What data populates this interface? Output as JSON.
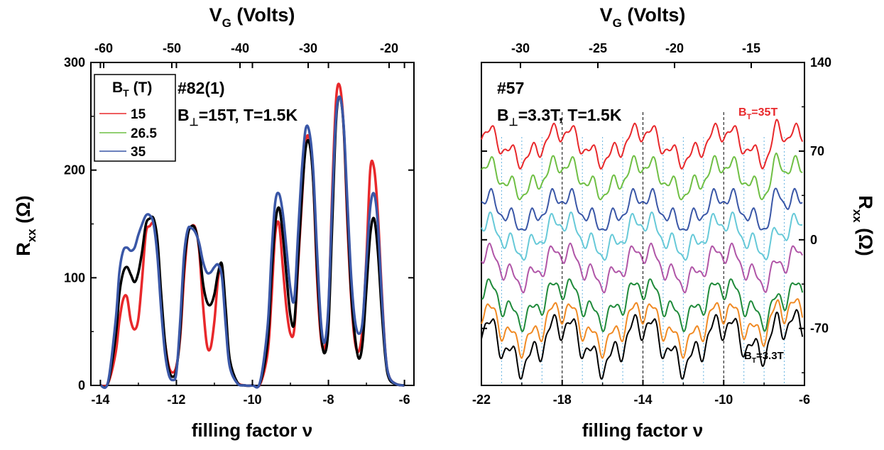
{
  "chart_data": [
    {
      "type": "line",
      "panel": "left",
      "xlabel": "filling factor ν",
      "top_axis_label": "V_G (Volts)",
      "ylabel": "R_xx (Ω)",
      "xlim": [
        -14.25,
        -5.75
      ],
      "ylim": [
        0,
        300
      ],
      "xticks": [
        "-14",
        "-12",
        "-10",
        "-8",
        "-6"
      ],
      "yticks": [
        "0",
        "100",
        "200",
        "300"
      ],
      "top_ticks": [
        "-60",
        "-50",
        "-40",
        "-30",
        "-20"
      ],
      "annotations": [
        "#82(1)",
        "B⊥=15T, T=1.5K"
      ],
      "legend": {
        "title": "B_T (T)",
        "placement": "top-left",
        "entries": [
          "15",
          "26.5",
          "35"
        ]
      },
      "series": [
        {
          "name": "15",
          "color": "#e8282b",
          "x": [
            -14.0,
            -13.8,
            -13.6,
            -13.5,
            -13.4,
            -13.3,
            -13.2,
            -13.1,
            -13.0,
            -12.9,
            -12.8,
            -12.7,
            -12.6,
            -12.5,
            -12.4,
            -12.3,
            -12.2,
            -12.1,
            -12.0,
            -11.9,
            -11.8,
            -11.7,
            -11.6,
            -11.5,
            -11.4,
            -11.3,
            -11.2,
            -11.1,
            -11.0,
            -10.9,
            -10.8,
            -10.7,
            -10.6,
            -10.4,
            -10.2,
            -10.0,
            -9.8,
            -9.6,
            -9.5,
            -9.4,
            -9.3,
            -9.2,
            -9.1,
            -9.0,
            -8.9,
            -8.8,
            -8.7,
            -8.6,
            -8.5,
            -8.4,
            -8.3,
            -8.2,
            -8.1,
            -8.0,
            -7.9,
            -7.8,
            -7.7,
            -7.6,
            -7.5,
            -7.4,
            -7.3,
            -7.2,
            -7.1,
            -7.0,
            -6.9,
            -6.8,
            -6.7,
            -6.6,
            -6.5,
            -6.4,
            -6.2,
            -6.0
          ],
          "y": [
            0,
            2,
            30,
            60,
            80,
            82,
            60,
            52,
            62,
            100,
            142,
            148,
            150,
            130,
            75,
            40,
            18,
            12,
            18,
            45,
            100,
            140,
            148,
            146,
            125,
            75,
            38,
            35,
            60,
            100,
            110,
            60,
            20,
            3,
            0,
            0,
            1,
            30,
            80,
            140,
            150,
            110,
            70,
            48,
            52,
            110,
            170,
            225,
            228,
            190,
            100,
            45,
            35,
            70,
            180,
            265,
            278,
            240,
            150,
            80,
            40,
            32,
            55,
            120,
            200,
            202,
            160,
            90,
            30,
            8,
            1,
            0
          ]
        },
        {
          "name": "26.5",
          "color": "#000000",
          "x": [
            -14.0,
            -13.8,
            -13.6,
            -13.5,
            -13.4,
            -13.3,
            -13.2,
            -13.1,
            -13.0,
            -12.9,
            -12.8,
            -12.7,
            -12.6,
            -12.5,
            -12.4,
            -12.3,
            -12.2,
            -12.1,
            -12.0,
            -11.9,
            -11.8,
            -11.7,
            -11.6,
            -11.5,
            -11.4,
            -11.3,
            -11.2,
            -11.1,
            -11.0,
            -10.9,
            -10.8,
            -10.7,
            -10.6,
            -10.4,
            -10.2,
            -10.0,
            -9.8,
            -9.6,
            -9.5,
            -9.4,
            -9.3,
            -9.2,
            -9.1,
            -9.0,
            -8.9,
            -8.8,
            -8.7,
            -8.6,
            -8.5,
            -8.4,
            -8.3,
            -8.2,
            -8.1,
            -8.0,
            -7.9,
            -7.8,
            -7.7,
            -7.6,
            -7.5,
            -7.4,
            -7.3,
            -7.2,
            -7.1,
            -7.0,
            -6.9,
            -6.8,
            -6.7,
            -6.6,
            -6.5,
            -6.4,
            -6.2,
            -6.0
          ],
          "y": [
            0,
            2,
            45,
            85,
            105,
            110,
            103,
            96,
            105,
            125,
            150,
            155,
            155,
            135,
            85,
            40,
            15,
            8,
            15,
            50,
            110,
            140,
            148,
            145,
            128,
            95,
            78,
            75,
            85,
            105,
            112,
            70,
            25,
            3,
            0,
            0,
            2,
            40,
            100,
            150,
            165,
            140,
            100,
            65,
            58,
            115,
            175,
            220,
            225,
            190,
            110,
            50,
            30,
            55,
            150,
            245,
            268,
            240,
            160,
            85,
            45,
            25,
            40,
            90,
            140,
            155,
            125,
            70,
            25,
            6,
            1,
            0
          ]
        },
        {
          "name": "35",
          "color": "#3a57a7",
          "x": [
            -14.0,
            -13.8,
            -13.6,
            -13.5,
            -13.4,
            -13.3,
            -13.2,
            -13.1,
            -13.0,
            -12.9,
            -12.8,
            -12.7,
            -12.6,
            -12.5,
            -12.4,
            -12.3,
            -12.2,
            -12.1,
            -12.0,
            -11.9,
            -11.8,
            -11.7,
            -11.6,
            -11.5,
            -11.4,
            -11.3,
            -11.2,
            -11.1,
            -11.0,
            -10.9,
            -10.8,
            -10.7,
            -10.6,
            -10.4,
            -10.2,
            -10.0,
            -9.8,
            -9.6,
            -9.5,
            -9.4,
            -9.3,
            -9.2,
            -9.1,
            -9.0,
            -8.9,
            -8.8,
            -8.7,
            -8.6,
            -8.5,
            -8.4,
            -8.3,
            -8.2,
            -8.1,
            -8.0,
            -7.9,
            -7.8,
            -7.7,
            -7.6,
            -7.5,
            -7.4,
            -7.3,
            -7.2,
            -7.1,
            -7.0,
            -6.9,
            -6.8,
            -6.7,
            -6.6,
            -6.5,
            -6.4,
            -6.2,
            -6.0
          ],
          "y": [
            0,
            3,
            60,
            105,
            125,
            128,
            125,
            128,
            140,
            150,
            158,
            158,
            150,
            120,
            70,
            30,
            10,
            5,
            12,
            60,
            120,
            145,
            146,
            142,
            132,
            115,
            105,
            105,
            110,
            112,
            100,
            55,
            18,
            2,
            0,
            0,
            3,
            55,
            120,
            170,
            178,
            160,
            125,
            90,
            80,
            140,
            200,
            238,
            235,
            200,
            125,
            60,
            40,
            75,
            170,
            250,
            268,
            242,
            170,
            100,
            60,
            48,
            60,
            115,
            165,
            178,
            150,
            85,
            30,
            8,
            1,
            0
          ]
        }
      ]
    },
    {
      "type": "line",
      "panel": "right",
      "xlabel": "filling factor ν",
      "top_axis_label": "V_G (Volts)",
      "ylabel": "R_xx (Ω)",
      "xlim": [
        -22,
        -6
      ],
      "ylim": [
        -115,
        140
      ],
      "xticks": [
        "-22",
        "-18",
        "-14",
        "-10",
        "-6"
      ],
      "yticks": [
        "-70",
        "0",
        "70",
        "140"
      ],
      "top_ticks": [
        "-30",
        "-25",
        "-20",
        "-15"
      ],
      "annotations": [
        "#57",
        "B⊥=3.3T, T=1.5K",
        "B_T=35T",
        "B_T=3.3T"
      ],
      "dashed_guides_x": [
        -18,
        -14,
        -10
      ],
      "dotted_guides_x": [
        -21,
        -20,
        -19,
        -17,
        -16,
        -15,
        -13,
        -12,
        -11,
        -9,
        -8,
        -7
      ],
      "series": [
        {
          "color": "#e8282b",
          "offset": 75,
          "amp": 12
        },
        {
          "color": "#6fbf44",
          "offset": 49,
          "amp": 12
        },
        {
          "color": "#3a57a7",
          "offset": 23,
          "amp": 12
        },
        {
          "color": "#66c9d8",
          "offset": 3,
          "amp": 13
        },
        {
          "color": "#b055a7",
          "offset": -21,
          "amp": 13
        },
        {
          "color": "#1f8a3a",
          "offset": -49,
          "amp": 14
        },
        {
          "color": "#f08a24",
          "offset": -68,
          "amp": 15
        },
        {
          "color": "#000000",
          "offset": -82,
          "amp": 17
        }
      ]
    }
  ]
}
